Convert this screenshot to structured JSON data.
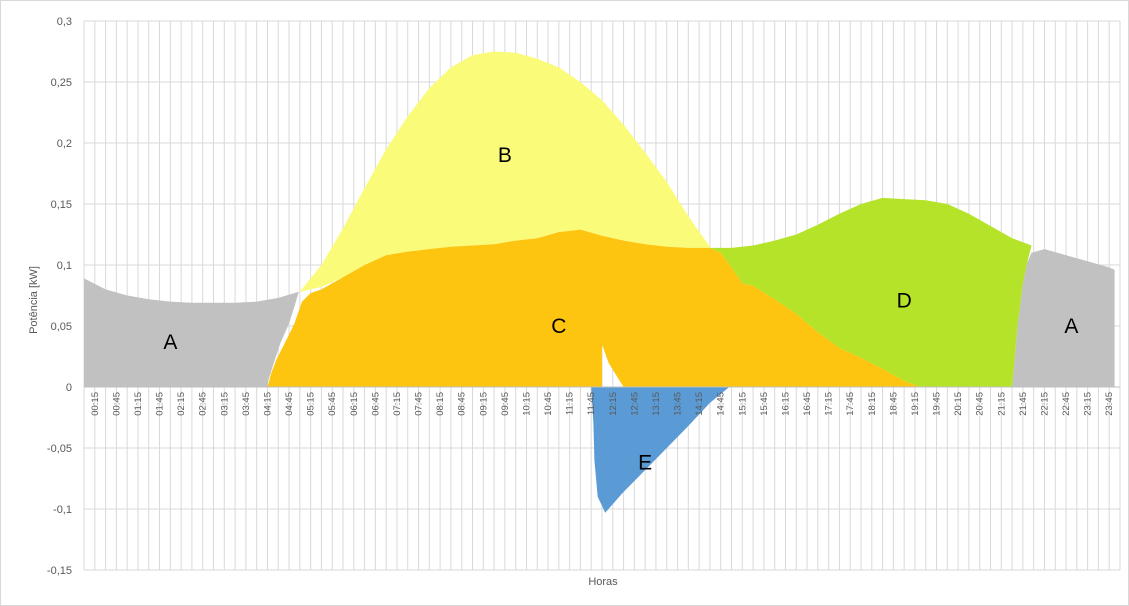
{
  "chart_data": {
    "type": "area",
    "xlabel": "Horas",
    "ylabel": "Potência [kW]",
    "ylim": [
      -0.15,
      0.3
    ],
    "yticks": [
      "-0,15",
      "-0,1",
      "-0,05",
      "0",
      "0,05",
      "0,1",
      "0,15",
      "0,2",
      "0,25",
      "0,3"
    ],
    "grid": true,
    "x": [
      "00:15",
      "00:45",
      "01:15",
      "01:45",
      "02:15",
      "02:45",
      "03:15",
      "03:45",
      "04:15",
      "04:45",
      "05:15",
      "05:45",
      "06:15",
      "06:45",
      "07:15",
      "07:45",
      "08:15",
      "08:45",
      "09:15",
      "09:45",
      "10:15",
      "10:45",
      "11:15",
      "11:45",
      "12:15",
      "12:45",
      "13:15",
      "13:45",
      "14:15",
      "14:45",
      "15:15",
      "15:45",
      "16:15",
      "16:45",
      "17:15",
      "17:45",
      "18:15",
      "18:45",
      "19:15",
      "19:45",
      "20:15",
      "20:45",
      "21:15",
      "21:45",
      "22:15",
      "22:45",
      "23:15",
      "23:45"
    ],
    "colors": {
      "A": "#c2c1c1",
      "B": "#fafb78",
      "C": "#fdc510",
      "D": "#b4e329",
      "E": "#5b9bd5"
    },
    "series": [
      {
        "name": "A",
        "points": [
          [
            0,
            0.089
          ],
          [
            2,
            0.08
          ],
          [
            4,
            0.075
          ],
          [
            6,
            0.072
          ],
          [
            8,
            0.07
          ],
          [
            10,
            0.069
          ],
          [
            12,
            0.069
          ],
          [
            14,
            0.069
          ],
          [
            16,
            0.07
          ],
          [
            18,
            0.073
          ],
          [
            19.9,
            0.078
          ],
          [
            19.5,
            0.066
          ],
          [
            19,
            0.052
          ],
          [
            18.2,
            0.036
          ],
          [
            17.6,
            0.02
          ],
          [
            17.1,
            0.006
          ],
          [
            17,
            0
          ],
          [
            0,
            0
          ]
        ]
      },
      {
        "name": "A",
        "points": [
          [
            87.8,
            0.11
          ],
          [
            89,
            0.113
          ],
          [
            91,
            0.108
          ],
          [
            93,
            0.103
          ],
          [
            95,
            0.098
          ],
          [
            95.5,
            0.096
          ],
          [
            95.5,
            0
          ],
          [
            86,
            0
          ],
          [
            86.5,
            0.05
          ],
          [
            87,
            0.085
          ],
          [
            87.4,
            0.102
          ]
        ]
      },
      {
        "name": "B",
        "points": [
          [
            20,
            0.078
          ],
          [
            22,
            0.1
          ],
          [
            24,
            0.13
          ],
          [
            26,
            0.163
          ],
          [
            28,
            0.195
          ],
          [
            30,
            0.222
          ],
          [
            32,
            0.245
          ],
          [
            34,
            0.262
          ],
          [
            36,
            0.272
          ],
          [
            38,
            0.275
          ],
          [
            40,
            0.274
          ],
          [
            42,
            0.269
          ],
          [
            44,
            0.262
          ],
          [
            46,
            0.25
          ],
          [
            48,
            0.235
          ],
          [
            50,
            0.215
          ],
          [
            52,
            0.192
          ],
          [
            54,
            0.168
          ],
          [
            56,
            0.14
          ],
          [
            58,
            0.115
          ],
          [
            58,
            0.114
          ],
          [
            56,
            0.114
          ],
          [
            54,
            0.115
          ],
          [
            52,
            0.117
          ],
          [
            50,
            0.12
          ],
          [
            48,
            0.124
          ],
          [
            46,
            0.129
          ],
          [
            44,
            0.127
          ],
          [
            42,
            0.122
          ],
          [
            40,
            0.12
          ],
          [
            38,
            0.117
          ],
          [
            36,
            0.116
          ],
          [
            34,
            0.115
          ],
          [
            32,
            0.113
          ],
          [
            30,
            0.111
          ],
          [
            28,
            0.108
          ],
          [
            26,
            0.1
          ],
          [
            24,
            0.09
          ],
          [
            22,
            0.082
          ],
          [
            20,
            0.078
          ]
        ]
      },
      {
        "name": "C",
        "points": [
          [
            17,
            0
          ],
          [
            17.3,
            0.01
          ],
          [
            17.8,
            0.022
          ],
          [
            18.5,
            0.034
          ],
          [
            19.5,
            0.052
          ],
          [
            20.2,
            0.07
          ],
          [
            21,
            0.077
          ],
          [
            22,
            0.08
          ],
          [
            24,
            0.09
          ],
          [
            26,
            0.1
          ],
          [
            28,
            0.108
          ],
          [
            30,
            0.111
          ],
          [
            32,
            0.113
          ],
          [
            34,
            0.115
          ],
          [
            36,
            0.116
          ],
          [
            38,
            0.117
          ],
          [
            40,
            0.12
          ],
          [
            42,
            0.122
          ],
          [
            44,
            0.127
          ],
          [
            46,
            0.129
          ],
          [
            48,
            0.124
          ],
          [
            50,
            0.12
          ],
          [
            52,
            0.117
          ],
          [
            54,
            0.115
          ],
          [
            56,
            0.114
          ],
          [
            58,
            0.114
          ],
          [
            59,
            0.11
          ],
          [
            60,
            0.098
          ],
          [
            61,
            0.085
          ],
          [
            62,
            0.083
          ],
          [
            64,
            0.072
          ],
          [
            66,
            0.06
          ],
          [
            68,
            0.045
          ],
          [
            70,
            0.032
          ],
          [
            72,
            0.024
          ],
          [
            74,
            0.015
          ],
          [
            76,
            0.005
          ],
          [
            77.5,
            0
          ],
          [
            50,
            0
          ],
          [
            49.5,
            0.007
          ],
          [
            48.6,
            0.02
          ],
          [
            47.8,
            0.04
          ],
          [
            47.6,
            0.052
          ],
          [
            47.7,
            0.066
          ],
          [
            47.9,
            0.08
          ],
          [
            48,
            0.092
          ],
          [
            48,
            0
          ],
          [
            48,
            0
          ]
        ]
      },
      {
        "name": "D",
        "points": [
          [
            58,
            0.114
          ],
          [
            60,
            0.114
          ],
          [
            62,
            0.116
          ],
          [
            64,
            0.12
          ],
          [
            66,
            0.125
          ],
          [
            68,
            0.133
          ],
          [
            70,
            0.142
          ],
          [
            72,
            0.15
          ],
          [
            74,
            0.155
          ],
          [
            76,
            0.154
          ],
          [
            78,
            0.153
          ],
          [
            80,
            0.15
          ],
          [
            82,
            0.142
          ],
          [
            84,
            0.132
          ],
          [
            86,
            0.122
          ],
          [
            87.8,
            0.116
          ],
          [
            87.4,
            0.102
          ],
          [
            87,
            0.085
          ],
          [
            86.5,
            0.05
          ],
          [
            86,
            0
          ],
          [
            77.5,
            0
          ],
          [
            76,
            0.005
          ],
          [
            74,
            0.015
          ],
          [
            72,
            0.024
          ],
          [
            70,
            0.032
          ],
          [
            68,
            0.045
          ],
          [
            66,
            0.06
          ],
          [
            64,
            0.072
          ],
          [
            62,
            0.083
          ],
          [
            61,
            0.085
          ],
          [
            60,
            0.098
          ],
          [
            59,
            0.11
          ]
        ]
      },
      {
        "name": "E",
        "points": [
          [
            48.8,
            0
          ],
          [
            59.8,
            0
          ],
          [
            58,
            -0.013
          ],
          [
            56,
            -0.032
          ],
          [
            54,
            -0.05
          ],
          [
            52,
            -0.068
          ],
          [
            50,
            -0.086
          ],
          [
            48.3,
            -0.103
          ],
          [
            47.6,
            -0.09
          ],
          [
            47.3,
            -0.06
          ],
          [
            47.2,
            -0.03
          ],
          [
            47.0,
            0
          ]
        ]
      }
    ],
    "annotations": [
      {
        "text": "A",
        "x": 8,
        "y": 0.037
      },
      {
        "text": "B",
        "x": 39,
        "y": 0.19
      },
      {
        "text": "C",
        "x": 44,
        "y": 0.05
      },
      {
        "text": "D",
        "x": 76,
        "y": 0.071
      },
      {
        "text": "E",
        "x": 52,
        "y": -0.062
      },
      {
        "text": "A",
        "x": 91.5,
        "y": 0.05
      }
    ]
  }
}
